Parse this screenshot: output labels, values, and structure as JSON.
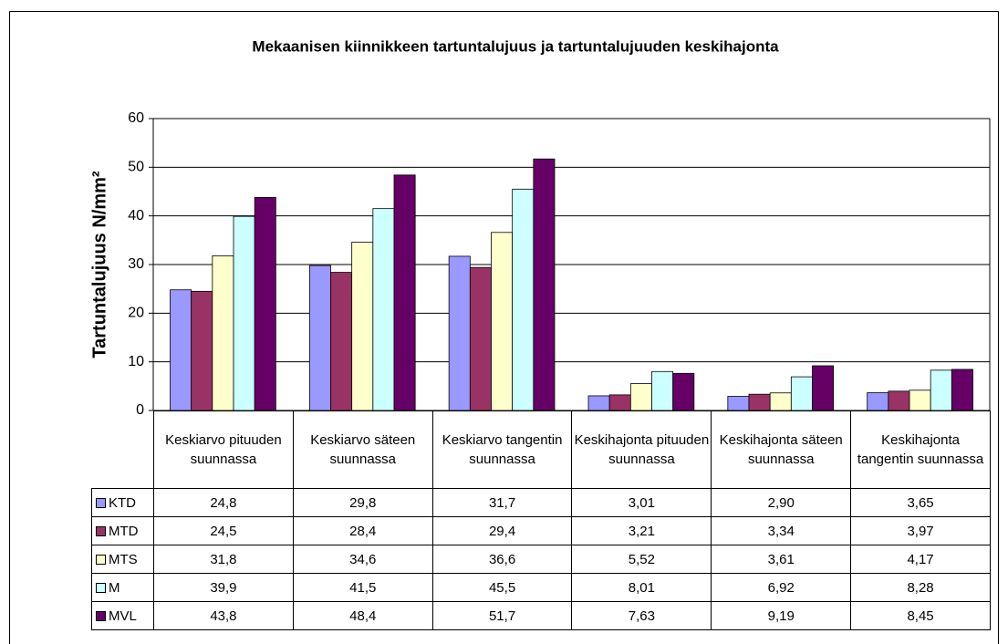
{
  "chart_data": {
    "type": "bar",
    "title": "Mekaanisen kiinnikkeen tartuntalujuus ja tartuntalujuuden keskihajonta",
    "y_label": "Tartuntalujuus N/mm²",
    "categories": [
      "Keskiarvo pituuden suunnassa",
      "Keskiarvo säteen suunnassa",
      "Keskiarvo tangentin suunnassa",
      "Keskihajonta pituuden suunnassa",
      "Keskihajonta säteen suunnassa",
      "Keskihajonta tangentin suunnassa"
    ],
    "series": [
      {
        "name": "KTD",
        "color": "#9999ff",
        "values": [
          24.8,
          29.8,
          31.7,
          3.01,
          2.9,
          3.65
        ],
        "value_labels": [
          "24,8",
          "29,8",
          "31,7",
          "3,01",
          "2,90",
          "3,65"
        ]
      },
      {
        "name": "MTD",
        "color": "#993366",
        "values": [
          24.5,
          28.4,
          29.4,
          3.21,
          3.34,
          3.97
        ],
        "value_labels": [
          "24,5",
          "28,4",
          "29,4",
          "3,21",
          "3,34",
          "3,97"
        ]
      },
      {
        "name": "MTS",
        "color": "#ffffcc",
        "values": [
          31.8,
          34.6,
          36.6,
          5.52,
          3.61,
          4.17
        ],
        "value_labels": [
          "31,8",
          "34,6",
          "36,6",
          "5,52",
          "3,61",
          "4,17"
        ]
      },
      {
        "name": "M",
        "color": "#ccffff",
        "values": [
          39.9,
          41.5,
          45.5,
          8.01,
          6.92,
          8.28
        ],
        "value_labels": [
          "39,9",
          "41,5",
          "45,5",
          "8,01",
          "6,92",
          "8,28"
        ]
      },
      {
        "name": "MVL",
        "color": "#660066",
        "values": [
          43.8,
          48.4,
          51.7,
          7.63,
          9.19,
          8.45
        ],
        "value_labels": [
          "43,8",
          "48,4",
          "51,7",
          "7,63",
          "9,19",
          "8,45"
        ]
      }
    ],
    "ylim": [
      0,
      60
    ],
    "yticks": [
      0,
      10,
      20,
      30,
      40,
      50,
      60
    ],
    "grid": true
  }
}
